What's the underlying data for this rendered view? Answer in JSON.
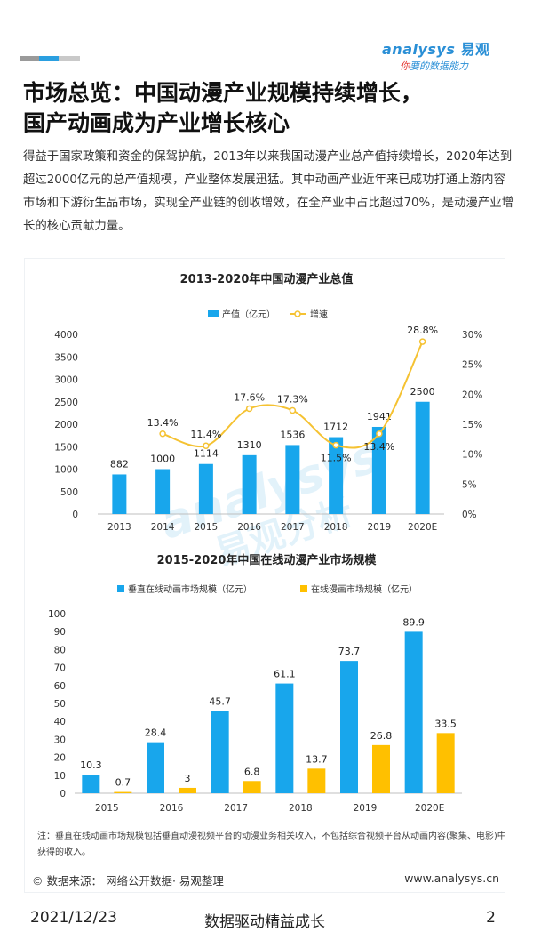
{
  "brand": {
    "logo_prefix": "a",
    "logo_text": "nalysys",
    "logo_cn": "易观",
    "tagline_first": "你",
    "tagline_rest": "要的数据能力",
    "bar_colors": [
      "#9a9a9a",
      "#2a9fe0",
      "#c9c9c9"
    ],
    "accent": "#2a9fe0"
  },
  "header": {
    "title_line1": "市场总览：中国动漫产业规模持续增长，",
    "title_line2": "国产动画成为产业增长核心"
  },
  "intro": "得益于国家政策和资金的保驾护航，2013年以来我国动漫产业总产值持续增长，2020年达到超过2000亿元的总产值规模，产业整体发展迅猛。其中动画产业近年来已成功打通上游内容市场和下游衍生品市场，实现全产业链的创收增效，在全产业中占比超过70%，是动漫产业增长的核心贡献力量。",
  "watermark": {
    "line1": "analysys",
    "line2": "易观分析"
  },
  "chart_data": [
    {
      "type": "bar",
      "title": "2013-2020年中国动漫产业总值",
      "categories": [
        "2013",
        "2014",
        "2015",
        "2016",
        "2017",
        "2018",
        "2019",
        "2020E"
      ],
      "series": [
        {
          "name": "产值（亿元）",
          "type": "bar",
          "axis": "left",
          "color": "#18a6ec",
          "values": [
            882,
            1000,
            1114,
            1310,
            1536,
            1712,
            1941,
            2500
          ]
        },
        {
          "name": "增速",
          "type": "line",
          "axis": "right",
          "color": "#f5c232",
          "values": [
            null,
            13.4,
            11.4,
            17.6,
            17.3,
            11.5,
            13.4,
            28.8
          ],
          "labels": [
            "",
            "13.4%",
            "11.4%",
            "17.6%",
            "17.3%",
            "11.5%",
            "13.4%",
            "28.8%"
          ]
        }
      ],
      "ylim": [
        0,
        4000
      ],
      "yticks": [
        0,
        500,
        1000,
        1500,
        2000,
        2500,
        3000,
        3500,
        4000
      ],
      "y2lim": [
        0,
        30
      ],
      "y2ticks": [
        0,
        5,
        10,
        15,
        20,
        25,
        30
      ],
      "y2ticklabels": [
        "0%",
        "5%",
        "10%",
        "15%",
        "20%",
        "25%",
        "30%"
      ],
      "legend": "top-center"
    },
    {
      "type": "bar",
      "title": "2015-2020年中国在线动漫产业市场规模",
      "categories": [
        "2015",
        "2016",
        "2017",
        "2018",
        "2019",
        "2020E"
      ],
      "series": [
        {
          "name": "垂直在线动画市场规模（亿元）",
          "color": "#18a6ec",
          "values": [
            10.3,
            28.4,
            45.7,
            61.1,
            73.7,
            89.9
          ]
        },
        {
          "name": "在线漫画市场规模（亿元）",
          "color": "#ffc000",
          "values": [
            0.7,
            3,
            6.8,
            13.7,
            26.8,
            33.5
          ]
        }
      ],
      "ylim": [
        0,
        100
      ],
      "yticks": [
        0,
        10,
        20,
        30,
        40,
        50,
        60,
        70,
        80,
        90,
        100
      ],
      "legend": "top-center"
    }
  ],
  "note": "注：垂直在线动画市场规模包括垂直动漫视频平台的动漫业务相关收入，不包括综合视频平台从动画内容(聚集、电影)中获得的收入。",
  "source": "© 数据来源： 网络公开数据· 易观整理",
  "url": "www.analysys.cn",
  "footer": {
    "date": "2021/12/23",
    "slogan": "数据驱动精益成长",
    "page": "2"
  }
}
